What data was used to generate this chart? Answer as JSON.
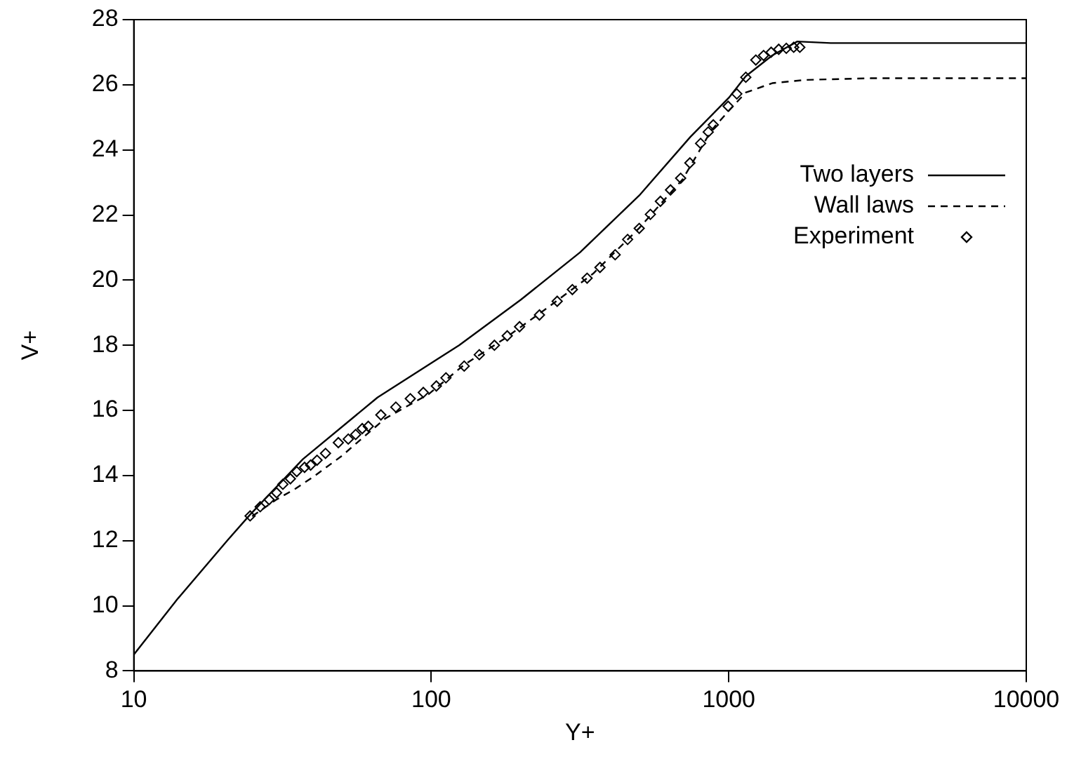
{
  "chart_data": {
    "type": "line",
    "xlabel": "Y+",
    "ylabel": "V+",
    "log": "x",
    "xlim": [
      10,
      10000
    ],
    "xticks": [
      10,
      100,
      1000,
      10000
    ],
    "ylim": [
      8,
      28
    ],
    "yticks": [
      8,
      10,
      12,
      14,
      16,
      18,
      20,
      22,
      24,
      26,
      28
    ],
    "grid": false,
    "legend": "top right",
    "series": [
      {
        "name": "Two layers",
        "line_style": "solid",
        "marker": "none",
        "color": "#000000",
        "x": [
          10,
          14,
          20.6,
          24.6,
          37,
          66,
          124,
          200,
          316,
          500,
          743,
          1000,
          1140,
          1400,
          1700,
          2200,
          10000
        ],
        "values": [
          8.5,
          10.2,
          12.0,
          12.8,
          14.5,
          16.4,
          18.0,
          19.4,
          20.85,
          22.6,
          24.4,
          25.6,
          26.26,
          26.9,
          27.33,
          27.28,
          27.28
        ]
      },
      {
        "name": "Wall laws",
        "line_style": "dashed",
        "marker": "none",
        "color": "#000000",
        "x": [
          25,
          30,
          35,
          40,
          50,
          57,
          70,
          98,
          129,
          176,
          250,
          350,
          500,
          700,
          874,
          1000,
          1140,
          1400,
          1820,
          3000,
          10000
        ],
        "values": [
          12.75,
          13.25,
          13.6,
          13.95,
          14.6,
          15.05,
          15.75,
          16.5,
          17.4,
          18.2,
          19.2,
          20.2,
          21.6,
          23.1,
          24.6,
          25.2,
          25.76,
          26.05,
          26.15,
          26.2,
          26.2
        ]
      },
      {
        "name": "Experiment",
        "type": "scatter",
        "marker": "diamond",
        "color": "#000000",
        "x": [
          24.6,
          26.6,
          28.5,
          30.2,
          31.7,
          33.6,
          35.3,
          37.5,
          39.3,
          41.3,
          44.1,
          48.7,
          52.6,
          55.7,
          58.6,
          61.4,
          67.7,
          76,
          85,
          94,
          104,
          112,
          129,
          145,
          163,
          180,
          198,
          231,
          265,
          298,
          334,
          369,
          415,
          457,
          500,
          545,
          589,
          637,
          689,
          740,
          804,
          853,
          887,
          995,
          1064,
          1141,
          1233,
          1309,
          1388,
          1472,
          1561,
          1653,
          1733
        ],
        "values": [
          12.76,
          13.04,
          13.26,
          13.47,
          13.73,
          13.9,
          14.12,
          14.25,
          14.32,
          14.47,
          14.68,
          15.01,
          15.12,
          15.26,
          15.44,
          15.51,
          15.86,
          16.1,
          16.36,
          16.55,
          16.75,
          17.0,
          17.36,
          17.71,
          18.0,
          18.29,
          18.57,
          18.93,
          19.35,
          19.71,
          20.06,
          20.39,
          20.78,
          21.25,
          21.59,
          22.02,
          22.42,
          22.77,
          23.13,
          23.6,
          24.2,
          24.55,
          24.77,
          25.34,
          25.72,
          26.23,
          26.76,
          26.9,
          27.0,
          27.09,
          27.12,
          27.15,
          27.15
        ]
      }
    ]
  }
}
